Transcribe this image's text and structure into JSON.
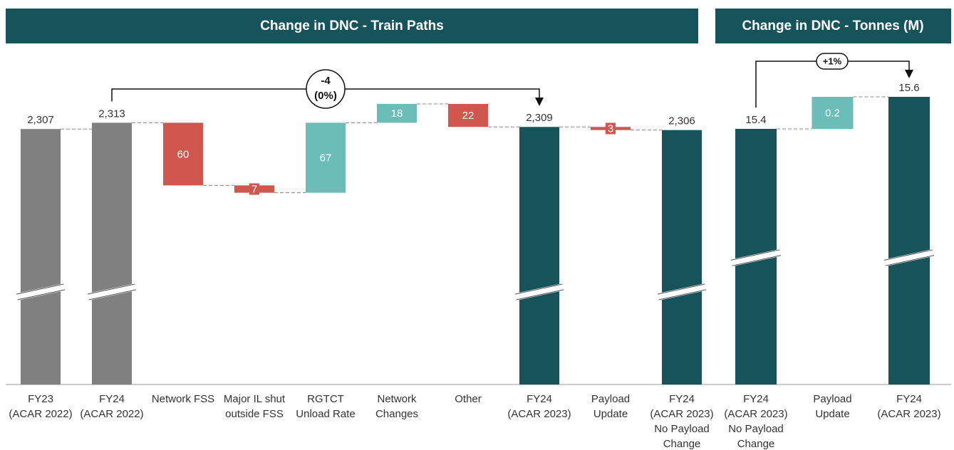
{
  "chart_data": [
    {
      "type": "waterfall",
      "title": "Change in DNC - Train Paths",
      "categories": [
        [
          "FY23",
          "(ACAR 2022)"
        ],
        [
          "FY24",
          "(ACAR 2022)"
        ],
        [
          "Network FSS"
        ],
        [
          "Major IL shut",
          "outside FSS"
        ],
        [
          "RGTCT",
          "Unload Rate"
        ],
        [
          "Network",
          "Changes"
        ],
        [
          "Other"
        ],
        [
          "FY24",
          "(ACAR 2023)"
        ],
        [
          "Payload",
          "Update"
        ],
        [
          "FY24",
          "(ACAR 2023)",
          "No Payload",
          "Change"
        ]
      ],
      "values": [
        2307,
        2313,
        -60,
        -7,
        67,
        18,
        -22,
        2309,
        -3,
        2306
      ],
      "value_labels": [
        "2,307",
        "2,313",
        "60",
        "7",
        "67",
        "18",
        "22",
        "2,309",
        "3",
        "2,306"
      ],
      "measure": [
        "total",
        "total",
        "relative",
        "relative",
        "relative",
        "relative",
        "relative",
        "total",
        "relative",
        "total"
      ],
      "colors": [
        "#808080",
        "#808080",
        "#d0574e",
        "#d0574e",
        "#6cbcb8",
        "#6cbcb8",
        "#d0574e",
        "#17535b",
        "#d0574e",
        "#17535b"
      ],
      "annotation": [
        "-4",
        "(0%)"
      ]
    },
    {
      "type": "waterfall",
      "title": "Change in DNC - Tonnes (M)",
      "categories": [
        [
          "FY24",
          "(ACAR 2023)",
          "No Payload",
          "Change"
        ],
        [
          "Payload",
          "Update"
        ],
        [
          "FY24",
          "(ACAR 2023)"
        ]
      ],
      "values": [
        15.4,
        0.2,
        15.6
      ],
      "value_labels": [
        "15.4",
        "0.2",
        "15.6"
      ],
      "measure": [
        "total",
        "relative",
        "total"
      ],
      "colors": [
        "#17535b",
        "#6cbcb8",
        "#17535b"
      ],
      "annotation": [
        "+1%"
      ]
    }
  ]
}
